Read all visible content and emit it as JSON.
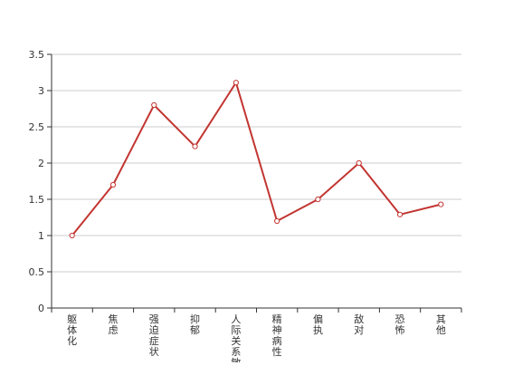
{
  "chart_data": {
    "type": "line",
    "title": "",
    "xlabel": "",
    "ylabel": "",
    "categories": [
      "躯体化",
      "焦虑",
      "强迫症状",
      "抑郁",
      "人际关系敏感",
      "精神病性",
      "偏执",
      "敌对",
      "恐怖",
      "其他"
    ],
    "series": [
      {
        "values": [
          1.0,
          1.7,
          2.8,
          2.23,
          3.11,
          1.2,
          1.5,
          2.0,
          1.29,
          1.43
        ]
      }
    ],
    "ylim": [
      0,
      3.5
    ],
    "yticks": [
      0,
      0.5,
      1,
      1.5,
      2,
      2.5,
      3,
      3.5
    ],
    "ytick_labels": [
      "0",
      "0.5",
      "1",
      "1.5",
      "2",
      "2.5",
      "3",
      "3.5"
    ],
    "grid": true,
    "legend": "none",
    "colors": {
      "line": "#c23531",
      "grid": "#cccccc",
      "axis": "#333333"
    }
  }
}
